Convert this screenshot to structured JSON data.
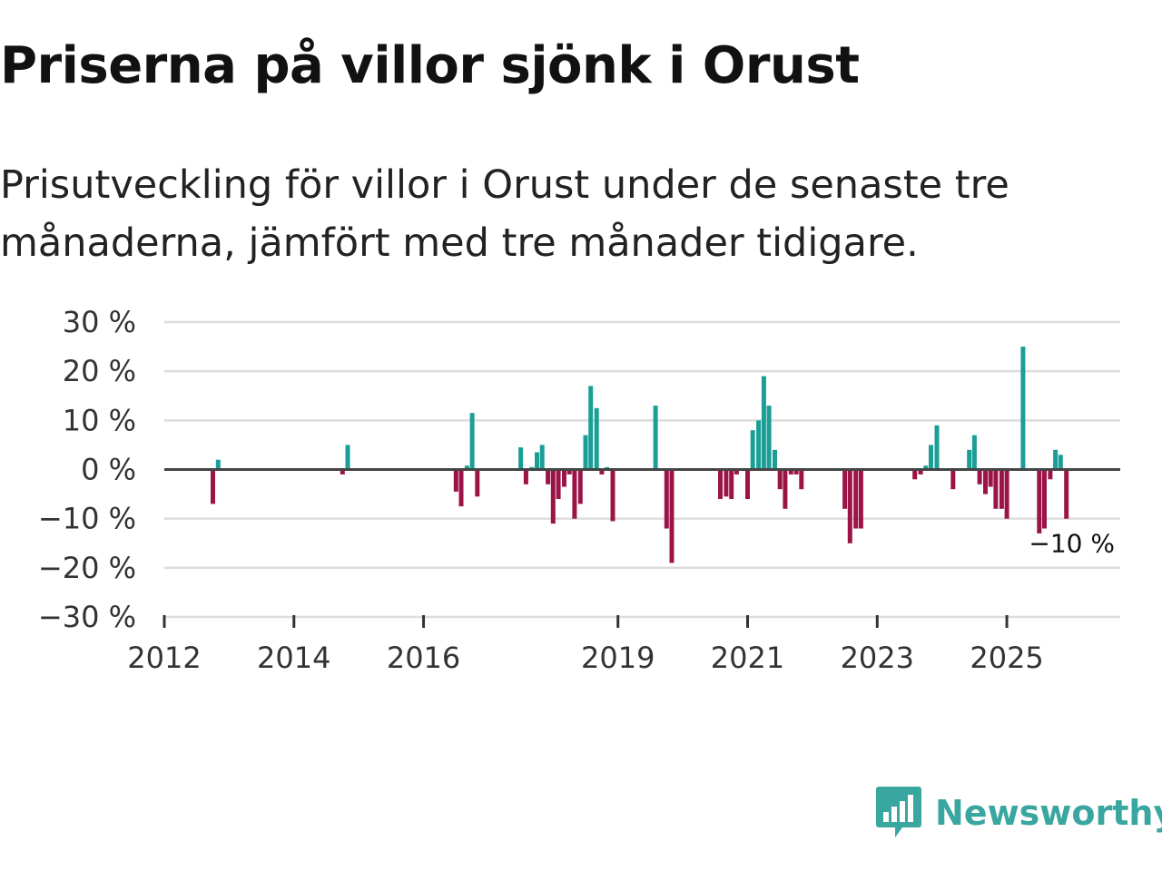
{
  "title": "Priserna på villor sjönk i Orust",
  "subtitle": "Prisutveckling för villor i Orust under de senaste tre månaderna, jämfört med tre månader tidigare.",
  "brand": {
    "name": "Newsworthy",
    "color": "#3aa6a0",
    "icon": "newsworthy-logo-icon"
  },
  "colors": {
    "positive": "#1a9e96",
    "negative": "#9c1447",
    "grid": "#dddddd",
    "zero_line": "#444444"
  },
  "chart_data": {
    "type": "bar",
    "ylim": [
      -30,
      30
    ],
    "yticks": [
      {
        "value": 30,
        "label": "30 %"
      },
      {
        "value": 20,
        "label": "20 %"
      },
      {
        "value": 10,
        "label": "10 %"
      },
      {
        "value": 0,
        "label": "0 %"
      },
      {
        "value": -10,
        "label": "−10 %"
      },
      {
        "value": -20,
        "label": "−20 %"
      },
      {
        "value": -30,
        "label": "−30 %"
      }
    ],
    "xlim": [
      2012.0,
      2026.75
    ],
    "xticks": [
      {
        "value": 2012,
        "label": "2012"
      },
      {
        "value": 2014,
        "label": "2014"
      },
      {
        "value": 2016,
        "label": "2016"
      },
      {
        "value": 2019,
        "label": "2019"
      },
      {
        "value": 2021,
        "label": "2021"
      },
      {
        "value": 2023,
        "label": "2023"
      },
      {
        "value": 2025,
        "label": "2025"
      }
    ],
    "last_value_label": "−10 %",
    "points": [
      {
        "x": 2012.75,
        "y": -7
      },
      {
        "x": 2012.83,
        "y": 2
      },
      {
        "x": 2014.75,
        "y": -1
      },
      {
        "x": 2014.83,
        "y": 5
      },
      {
        "x": 2016.5,
        "y": -4.5
      },
      {
        "x": 2016.58,
        "y": -7.5
      },
      {
        "x": 2016.67,
        "y": 0.8
      },
      {
        "x": 2016.75,
        "y": 11.5
      },
      {
        "x": 2016.83,
        "y": -5.5
      },
      {
        "x": 2017.5,
        "y": 4.5
      },
      {
        "x": 2017.58,
        "y": -3
      },
      {
        "x": 2017.67,
        "y": 0.5
      },
      {
        "x": 2017.75,
        "y": 3.5
      },
      {
        "x": 2017.83,
        "y": 5
      },
      {
        "x": 2017.92,
        "y": -3
      },
      {
        "x": 2018.0,
        "y": -11
      },
      {
        "x": 2018.08,
        "y": -6
      },
      {
        "x": 2018.17,
        "y": -3.5
      },
      {
        "x": 2018.25,
        "y": -1
      },
      {
        "x": 2018.33,
        "y": -10
      },
      {
        "x": 2018.42,
        "y": -7
      },
      {
        "x": 2018.5,
        "y": 7
      },
      {
        "x": 2018.58,
        "y": 17
      },
      {
        "x": 2018.67,
        "y": 12.5
      },
      {
        "x": 2018.75,
        "y": -1
      },
      {
        "x": 2018.83,
        "y": 0.5
      },
      {
        "x": 2018.92,
        "y": -10.5
      },
      {
        "x": 2019.58,
        "y": 13
      },
      {
        "x": 2019.75,
        "y": -12
      },
      {
        "x": 2019.83,
        "y": -19
      },
      {
        "x": 2020.58,
        "y": -6
      },
      {
        "x": 2020.67,
        "y": -5.5
      },
      {
        "x": 2020.75,
        "y": -6
      },
      {
        "x": 2020.83,
        "y": -1
      },
      {
        "x": 2021.0,
        "y": -6
      },
      {
        "x": 2021.08,
        "y": 8
      },
      {
        "x": 2021.17,
        "y": 10
      },
      {
        "x": 2021.25,
        "y": 19
      },
      {
        "x": 2021.33,
        "y": 13
      },
      {
        "x": 2021.42,
        "y": 4
      },
      {
        "x": 2021.5,
        "y": -4
      },
      {
        "x": 2021.58,
        "y": -8
      },
      {
        "x": 2021.67,
        "y": -1
      },
      {
        "x": 2021.75,
        "y": -1
      },
      {
        "x": 2021.83,
        "y": -4
      },
      {
        "x": 2022.5,
        "y": -8
      },
      {
        "x": 2022.58,
        "y": -15
      },
      {
        "x": 2022.67,
        "y": -12
      },
      {
        "x": 2022.75,
        "y": -12
      },
      {
        "x": 2023.58,
        "y": -2
      },
      {
        "x": 2023.67,
        "y": -1
      },
      {
        "x": 2023.75,
        "y": 0.8
      },
      {
        "x": 2023.83,
        "y": 5
      },
      {
        "x": 2023.92,
        "y": 9
      },
      {
        "x": 2024.17,
        "y": -4
      },
      {
        "x": 2024.42,
        "y": 4
      },
      {
        "x": 2024.5,
        "y": 7
      },
      {
        "x": 2024.58,
        "y": -3
      },
      {
        "x": 2024.67,
        "y": -5
      },
      {
        "x": 2024.75,
        "y": -3.5
      },
      {
        "x": 2024.83,
        "y": -8
      },
      {
        "x": 2024.92,
        "y": -8
      },
      {
        "x": 2025.0,
        "y": -10
      },
      {
        "x": 2025.25,
        "y": 25
      },
      {
        "x": 2025.5,
        "y": -13
      },
      {
        "x": 2025.58,
        "y": -12
      },
      {
        "x": 2025.67,
        "y": -2
      },
      {
        "x": 2025.75,
        "y": 4
      },
      {
        "x": 2025.83,
        "y": 3
      },
      {
        "x": 2025.92,
        "y": -10
      }
    ]
  }
}
